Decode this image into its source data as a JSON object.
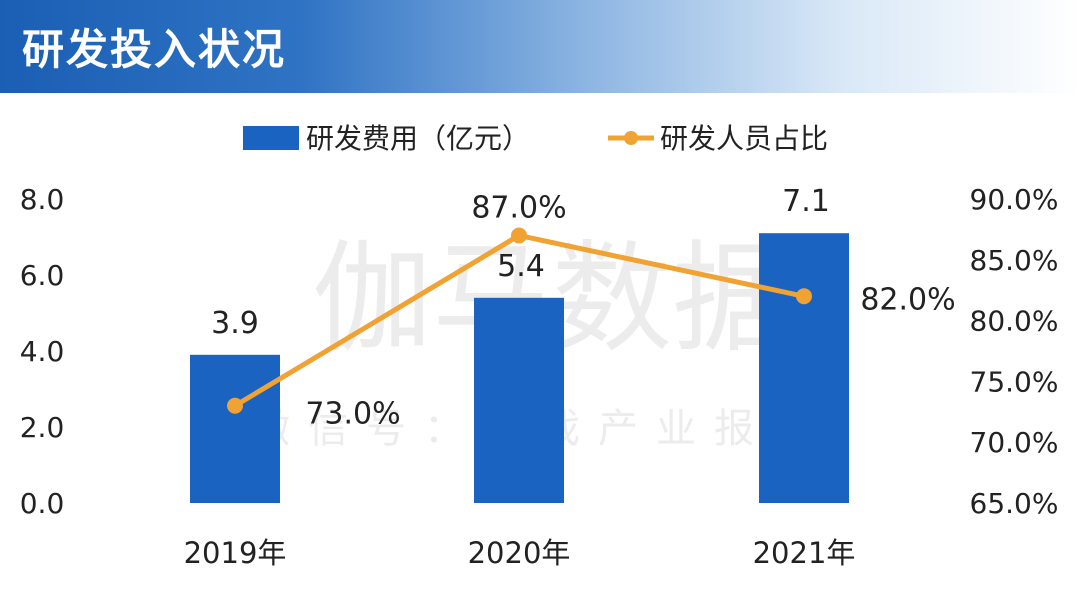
{
  "header": {
    "title": "研发投入状况"
  },
  "watermark": {
    "line1": "伽马数据",
    "line2": "微信号：游戏产业报告"
  },
  "colors": {
    "bar": "#1a63c0",
    "line": "#f0a232",
    "text": "#222222"
  },
  "chart_data": {
    "type": "bar+line",
    "categories": [
      "2019年",
      "2020年",
      "2021年"
    ],
    "series": [
      {
        "name": "研发费用（亿元）",
        "type": "bar",
        "axis": "left",
        "values": [
          3.9,
          5.4,
          7.1
        ],
        "labels": [
          "3.9",
          "5.4",
          "7.1"
        ]
      },
      {
        "name": "研发人员占比",
        "type": "line",
        "axis": "right",
        "values": [
          73.0,
          87.0,
          82.0
        ],
        "labels": [
          "73.0%",
          "87.0%",
          "82.0%"
        ]
      }
    ],
    "left_axis": {
      "ylim": [
        0,
        8
      ],
      "ticks": [
        "0.0",
        "2.0",
        "4.0",
        "6.0",
        "8.0"
      ]
    },
    "right_axis": {
      "ylim": [
        65,
        90
      ],
      "ticks": [
        "65.0%",
        "70.0%",
        "75.0%",
        "80.0%",
        "85.0%",
        "90.0%"
      ]
    },
    "legend": {
      "position": "top-center"
    },
    "grid": false
  }
}
